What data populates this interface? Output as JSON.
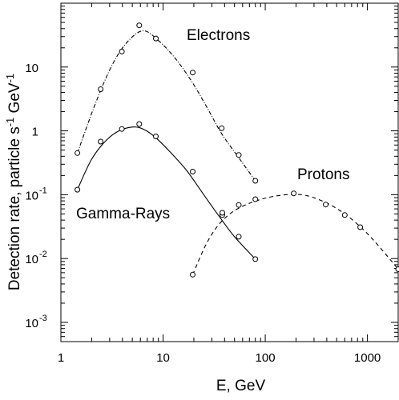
{
  "chart_data": {
    "type": "scatter",
    "title": "",
    "xlabel": "E, GeV",
    "ylabel": "Detection rate, particle s-1 GeV-1",
    "xscale": "log",
    "yscale": "log",
    "xlim": [
      1,
      2000
    ],
    "ylim": [
      0.0005,
      100
    ],
    "x_tick_labels": [
      {
        "value": 1,
        "label": "1"
      },
      {
        "value": 10,
        "label": "10"
      },
      {
        "value": 100,
        "label": "100"
      },
      {
        "value": 1000,
        "label": "1000"
      }
    ],
    "y_tick_labels": [
      {
        "value": 10,
        "base": "10",
        "exp": ""
      },
      {
        "value": 1,
        "base": "1",
        "exp": ""
      },
      {
        "value": 0.1,
        "base": "10",
        "exp": "-1"
      },
      {
        "value": 0.01,
        "base": "10",
        "exp": "-2"
      },
      {
        "value": 0.001,
        "base": "10",
        "exp": "-3"
      }
    ],
    "grid": false,
    "series": [
      {
        "name": "Electrons",
        "line_style": "dash-dot",
        "x": [
          1.45,
          2.45,
          3.95,
          5.85,
          8.5,
          19.5,
          37.5,
          55,
          80
        ],
        "y": [
          0.45,
          4.5,
          17.5,
          45,
          28,
          8.2,
          1.1,
          0.42,
          0.165
        ],
        "curve_x": [
          1.45,
          2.2,
          3.2,
          4.5,
          6.4,
          9,
          13,
          19,
          27,
          37.5,
          55,
          80
        ],
        "curve_y": [
          0.45,
          2.8,
          11,
          25,
          37,
          26,
          14,
          6.0,
          2.3,
          0.9,
          0.38,
          0.165
        ]
      },
      {
        "name": "Gamma-Rays",
        "line_style": "solid",
        "x": [
          1.45,
          2.45,
          3.95,
          5.85,
          8.5,
          19.5,
          38,
          55,
          80
        ],
        "y": [
          0.12,
          0.68,
          1.07,
          1.28,
          0.82,
          0.23,
          0.048,
          0.022,
          0.0098
        ],
        "curve_x": [
          1.45,
          2.0,
          2.8,
          3.8,
          5.2,
          6.5,
          8.5,
          12,
          17,
          24,
          35,
          50,
          80
        ],
        "curve_y": [
          0.12,
          0.36,
          0.72,
          1.02,
          1.15,
          1.05,
          0.78,
          0.45,
          0.24,
          0.11,
          0.047,
          0.022,
          0.0098
        ]
      },
      {
        "name": "Protons",
        "line_style": "dashed",
        "x": [
          19.5,
          38,
          55,
          80,
          190,
          390,
          600,
          850,
          2000
        ],
        "y": [
          0.0056,
          0.052,
          0.069,
          0.085,
          0.105,
          0.07,
          0.048,
          0.031,
          0.0068
        ],
        "curve_x": [
          19.5,
          26,
          34,
          45,
          60,
          85,
          120,
          180,
          260,
          400,
          600,
          900,
          1300,
          2000
        ],
        "curve_y": [
          0.0056,
          0.016,
          0.032,
          0.05,
          0.066,
          0.082,
          0.094,
          0.101,
          0.096,
          0.074,
          0.05,
          0.029,
          0.0155,
          0.0068
        ]
      }
    ]
  }
}
